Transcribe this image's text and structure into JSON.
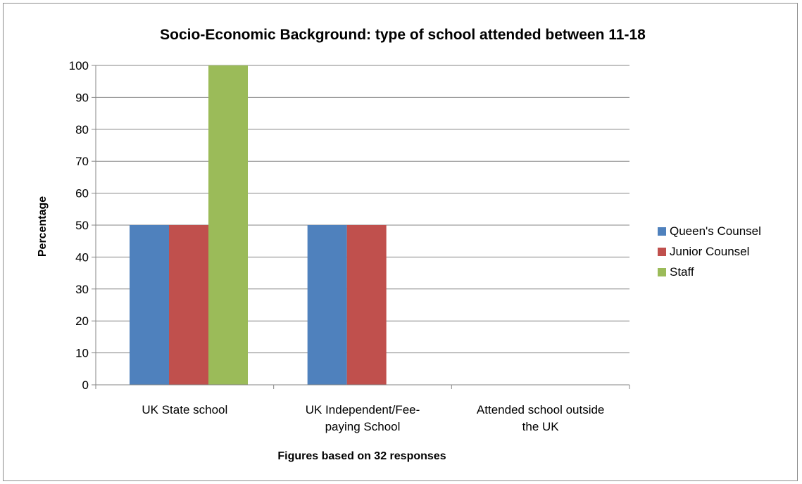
{
  "chart_data": {
    "type": "bar",
    "title": "Socio-Economic  Background:  type of school attended between 11-18",
    "xlabel": "Figures based on 32 responses",
    "ylabel": "Percentage",
    "ylim": [
      0,
      100
    ],
    "yticks": [
      0,
      10,
      20,
      30,
      40,
      50,
      60,
      70,
      80,
      90,
      100
    ],
    "categories": [
      [
        "UK State school"
      ],
      [
        "UK Independent/Fee-",
        "paying School"
      ],
      [
        "Attended school outside",
        "the UK"
      ]
    ],
    "series": [
      {
        "name": "Queen's Counsel",
        "color": "#4f81bd",
        "values": [
          50,
          50,
          0
        ]
      },
      {
        "name": "Junior Counsel",
        "color": "#c0504d",
        "values": [
          50,
          50,
          0
        ]
      },
      {
        "name": "Staff",
        "color": "#9bbb59",
        "values": [
          100,
          0,
          0
        ]
      }
    ],
    "grid": true,
    "legend_position": "right"
  }
}
